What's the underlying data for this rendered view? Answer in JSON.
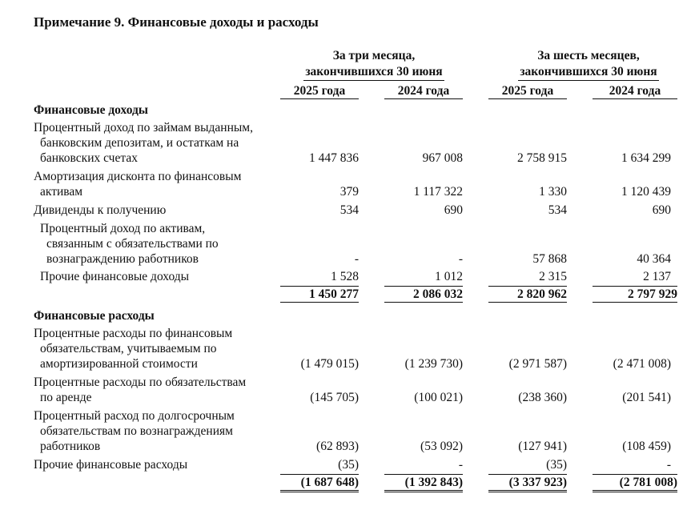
{
  "title": "Примечание 9. Финансовые доходы и расходы",
  "header": {
    "group1": {
      "line1": "За три месяца,",
      "line2": "закончившихся 30 июня"
    },
    "group2": {
      "line1": "За шесть месяцев,",
      "line2": "закончившихся 30 июня"
    },
    "years": [
      "2025 года",
      "2024 года",
      "2025 года",
      "2024 года"
    ]
  },
  "income": {
    "heading": "Финансовые доходы",
    "rows": [
      {
        "label": [
          "Процентный доход по займам выданным,",
          "банковским депозитам, и остаткам на",
          "банковских счетах"
        ],
        "values": [
          "1 447 836",
          "967 008",
          "2 758 915",
          "1 634 299"
        ]
      },
      {
        "label": [
          "Амортизация дисконта по финансовым",
          "активам"
        ],
        "values": [
          "379",
          "1 117 322",
          "1 330",
          "1 120 439"
        ]
      },
      {
        "label": [
          "Дивиденды к получению"
        ],
        "values": [
          "534",
          "690",
          "534",
          "690"
        ]
      },
      {
        "label": [
          "Процентный доход по активам,",
          "связанным с обязательствами по",
          "вознаграждению работников"
        ],
        "values": [
          "-",
          "-",
          "57 868",
          "40 364"
        ]
      },
      {
        "label": [
          "Прочие финансовые доходы"
        ],
        "values": [
          "1 528",
          "1 012",
          "2 315",
          "2 137"
        ]
      }
    ],
    "total": [
      "1 450 277",
      "2 086 032",
      "2 820 962",
      "2 797 929"
    ]
  },
  "expenses": {
    "heading": "Финансовые расходы",
    "rows": [
      {
        "label": [
          "Процентные расходы по финансовым",
          "обязательствам, учитываемым по",
          "амортизированной стоимости"
        ],
        "values": [
          "(1 479 015)",
          "(1 239 730)",
          "(2 971 587)",
          "(2 471 008)"
        ]
      },
      {
        "label": [
          "Процентные расходы по обязательствам",
          "по аренде"
        ],
        "values": [
          "(145 705)",
          "(100 021)",
          "(238 360)",
          "(201 541)"
        ]
      },
      {
        "label": [
          "Процентный расход по долгосрочным",
          "обязательствам по вознаграждениям",
          "работников"
        ],
        "values": [
          "(62 893)",
          "(53 092)",
          "(127 941)",
          "(108 459)"
        ]
      },
      {
        "label": [
          "Прочие финансовые расходы"
        ],
        "values": [
          "(35)",
          "-",
          "(35)",
          "-"
        ]
      }
    ],
    "total": [
      "(1 687 648)",
      "(1 392 843)",
      "(3 337 923)",
      "(2 781 008)"
    ]
  }
}
